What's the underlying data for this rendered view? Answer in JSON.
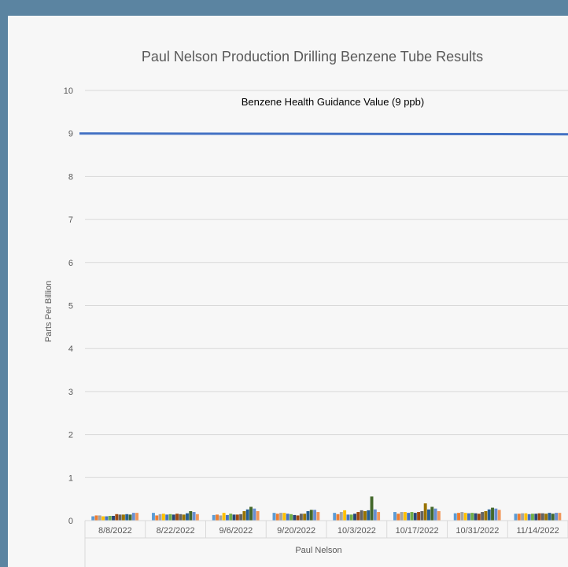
{
  "chart_data": {
    "type": "bar",
    "title": "Paul Nelson Production Drilling Benzene Tube Results",
    "ylabel": "Parts Per Billion",
    "xlabel": "Paul Nelson",
    "ylim": [
      0,
      10
    ],
    "yticks": [
      0,
      1,
      2,
      3,
      4,
      5,
      6,
      7,
      8,
      9,
      10
    ],
    "grid": true,
    "legend": "none",
    "categories": [
      "8/8/2022",
      "8/22/2022",
      "9/6/2022",
      "9/20/2022",
      "10/3/2022",
      "10/17/2022",
      "10/31/2022",
      "11/14/2022"
    ],
    "bar_colors": [
      "#5b9bd5",
      "#ed7d31",
      "#a5a5a5",
      "#ffc000",
      "#4472c4",
      "#70ad47",
      "#264478",
      "#9e480e",
      "#636363",
      "#997300",
      "#255e91",
      "#43682b",
      "#698ed0",
      "#f1975a"
    ],
    "series_values": [
      [
        0.1,
        0.12,
        0.12,
        0.1,
        0.1,
        0.11,
        0.11,
        0.15,
        0.14,
        0.14,
        0.15,
        0.14,
        0.18,
        0.18
      ],
      [
        0.18,
        0.12,
        0.15,
        0.16,
        0.14,
        0.15,
        0.14,
        0.16,
        0.15,
        0.14,
        0.17,
        0.22,
        0.2,
        0.15
      ],
      [
        0.13,
        0.14,
        0.12,
        0.18,
        0.13,
        0.16,
        0.14,
        0.14,
        0.15,
        0.22,
        0.26,
        0.32,
        0.28,
        0.22
      ],
      [
        0.18,
        0.16,
        0.18,
        0.18,
        0.16,
        0.15,
        0.13,
        0.12,
        0.16,
        0.16,
        0.22,
        0.25,
        0.25,
        0.2
      ],
      [
        0.18,
        0.15,
        0.2,
        0.24,
        0.14,
        0.14,
        0.16,
        0.2,
        0.24,
        0.22,
        0.24,
        0.56,
        0.26,
        0.2
      ],
      [
        0.2,
        0.16,
        0.2,
        0.2,
        0.18,
        0.2,
        0.18,
        0.2,
        0.22,
        0.4,
        0.26,
        0.32,
        0.28,
        0.22
      ],
      [
        0.17,
        0.18,
        0.2,
        0.18,
        0.17,
        0.18,
        0.17,
        0.16,
        0.2,
        0.22,
        0.26,
        0.3,
        0.28,
        0.25
      ],
      [
        0.16,
        0.16,
        0.17,
        0.17,
        0.15,
        0.16,
        0.16,
        0.17,
        0.17,
        0.16,
        0.18,
        0.16,
        0.18,
        0.18
      ]
    ],
    "reference_line": {
      "value": 9,
      "label": "Benzene Health Guidance Value (9 ppb)",
      "color": "#4472c4"
    }
  }
}
